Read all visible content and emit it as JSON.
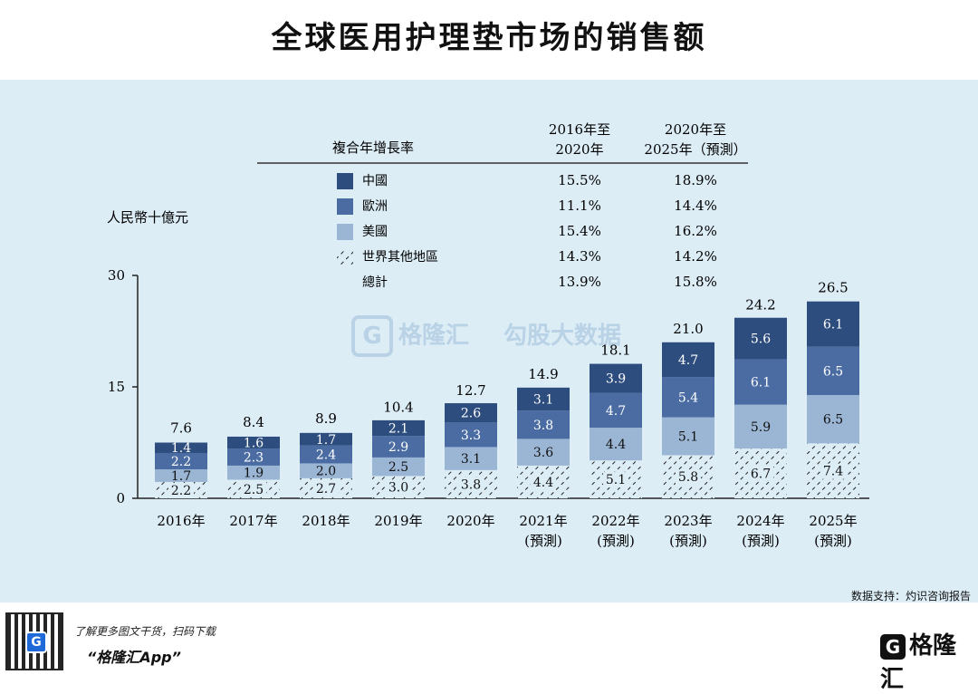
{
  "page": {
    "title": "全球医用护理垫市场的销售额",
    "source": "数据支持：灼识咨询报告",
    "watermark_left": "格隆汇",
    "watermark_right": "勾股大数据",
    "footer_line1": "了解更多图文干货，扫码下载",
    "footer_line2": "“格隆汇App”",
    "footer_brand": "格隆汇",
    "brand_glyph": "G"
  },
  "colors": {
    "china": "#2d4d7e",
    "europe": "#4a6ca3",
    "usa": "#9bb6d4",
    "rest": "#dcedf6",
    "panel_bg": "#dcedf6"
  },
  "chart_data": {
    "type": "bar",
    "stacked": true,
    "ylabel": "人民幣十億元",
    "yticks": [
      0,
      15,
      30
    ],
    "ylim": [
      0,
      30
    ],
    "categories": [
      "2016年",
      "2017年",
      "2018年",
      "2019年",
      "2020年",
      "2021年\n(預測)",
      "2022年\n(預測)",
      "2023年\n(預測)",
      "2024年\n(預測)",
      "2025年\n(預測)"
    ],
    "series": [
      {
        "name": "世界其他地區",
        "values": [
          2.2,
          2.5,
          2.7,
          3.0,
          3.8,
          4.4,
          5.1,
          5.8,
          6.7,
          7.4
        ]
      },
      {
        "name": "美國",
        "values": [
          1.7,
          1.9,
          2.0,
          2.5,
          3.1,
          3.6,
          4.4,
          5.1,
          5.9,
          6.5
        ]
      },
      {
        "name": "歐洲",
        "values": [
          2.2,
          2.3,
          2.4,
          2.9,
          3.3,
          3.8,
          4.7,
          5.4,
          6.1,
          6.5
        ]
      },
      {
        "name": "中國",
        "values": [
          1.4,
          1.6,
          1.7,
          2.1,
          2.6,
          3.1,
          3.9,
          4.7,
          5.6,
          6.1
        ]
      }
    ],
    "totals": [
      7.6,
      8.4,
      8.9,
      10.4,
      12.7,
      14.9,
      18.1,
      21.0,
      24.2,
      26.5
    ],
    "cagr_table": {
      "header_label": "複合年增長率",
      "col1_header": [
        "2016年至",
        "2020年"
      ],
      "col2_header": [
        "2020年至",
        "2025年（預測）"
      ],
      "rows": [
        {
          "name": "中國",
          "col1": "15.5%",
          "col2": "18.9%",
          "swatch": "china"
        },
        {
          "name": "歐洲",
          "col1": "11.1%",
          "col2": "14.4%",
          "swatch": "europe"
        },
        {
          "name": "美國",
          "col1": "15.4%",
          "col2": "16.2%",
          "swatch": "usa"
        },
        {
          "name": "世界其他地區",
          "col1": "14.3%",
          "col2": "14.2%",
          "swatch": "rest"
        },
        {
          "name": "總計",
          "col1": "13.9%",
          "col2": "15.8%",
          "swatch": ""
        }
      ]
    }
  }
}
